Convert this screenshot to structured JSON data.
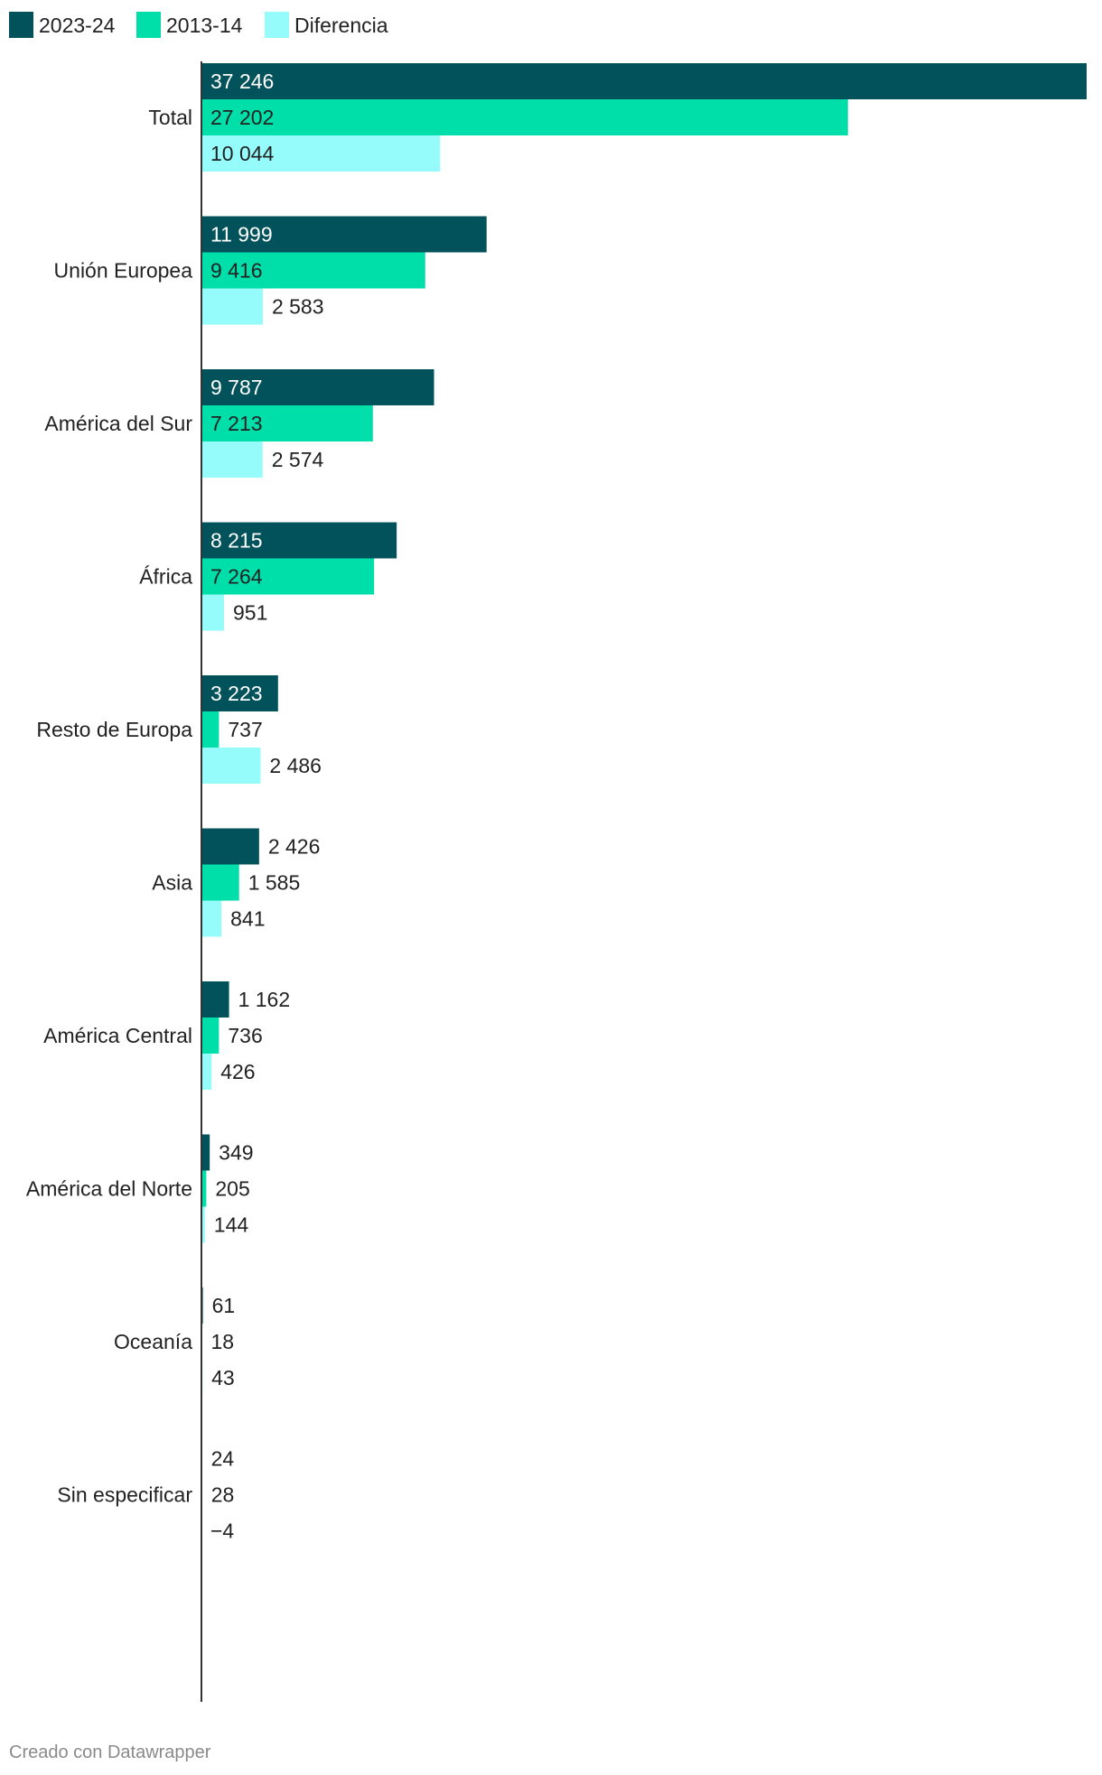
{
  "chart_data": {
    "type": "bar",
    "orientation": "horizontal",
    "legend_position": "top-left",
    "grid": false,
    "categories": [
      "Total",
      "Unión Europea",
      "América del Sur",
      "África",
      "Resto de Europa",
      "Asia",
      "América Central",
      "América del Norte",
      "Oceanía",
      "Sin especificar"
    ],
    "series": [
      {
        "name": "2023-24",
        "color": "#01525a",
        "values": [
          37246,
          11999,
          9787,
          8215,
          3223,
          2426,
          1162,
          349,
          61,
          24
        ],
        "labels": [
          "37 246",
          "11 999",
          "9 787",
          "8 215",
          "3 223",
          "2 426",
          "1 162",
          "349",
          "61",
          "24"
        ]
      },
      {
        "name": "2013-14",
        "color": "#00dea9",
        "values": [
          27202,
          9416,
          7213,
          7264,
          737,
          1585,
          736,
          205,
          18,
          28
        ],
        "labels": [
          "27 202",
          "9 416",
          "7 213",
          "7 264",
          "737",
          "1 585",
          "736",
          "205",
          "18",
          "28"
        ]
      },
      {
        "name": "Diferencia",
        "color": "#95fbfb",
        "values": [
          10044,
          2583,
          2574,
          951,
          2486,
          841,
          426,
          144,
          43,
          -4
        ],
        "labels": [
          "10 044",
          "2 583",
          "2 574",
          "951",
          "2 486",
          "841",
          "426",
          "144",
          "43",
          "−4"
        ]
      }
    ],
    "xlim": [
      0,
      37246
    ]
  },
  "footer": {
    "credit": "Creado con Datawrapper"
  }
}
